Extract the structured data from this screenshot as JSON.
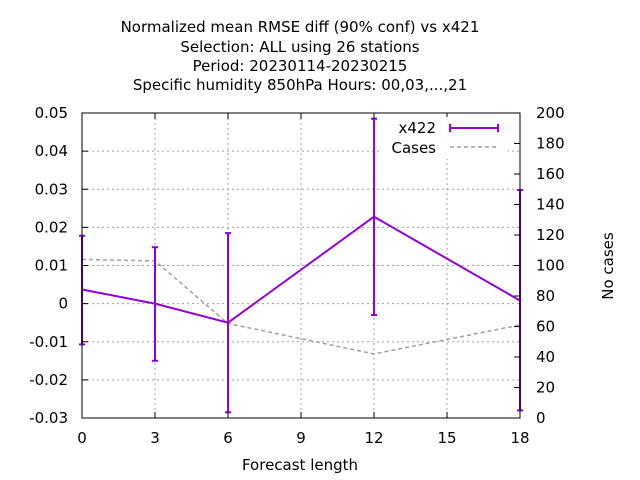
{
  "chart_data": {
    "type": "line",
    "title": [
      "Normalized mean RMSE diff (90% conf) vs x421",
      "Selection: ALL using    26 stations",
      "Period: 20230114-20230215",
      "Specific humidity 850hPa   Hours:  00,03,...,21"
    ],
    "xlabel": "Forecast length",
    "ylabel": "",
    "y2label": "No cases",
    "xlim": [
      0,
      18
    ],
    "ylim": [
      -0.03,
      0.05
    ],
    "y2lim": [
      0,
      200
    ],
    "xticks": [
      0,
      3,
      6,
      9,
      12,
      15,
      18
    ],
    "xtick_labels": [
      "0",
      "3",
      "6",
      "9",
      "12",
      "15",
      "18"
    ],
    "yticks": [
      -0.03,
      -0.02,
      -0.01,
      0,
      0.01,
      0.02,
      0.03,
      0.04,
      0.05
    ],
    "ytick_labels": [
      "-0.03",
      "-0.02",
      "-0.01",
      "0",
      "0.01",
      "0.02",
      "0.03",
      "0.04",
      "0.05"
    ],
    "y2ticks": [
      0,
      20,
      40,
      60,
      80,
      100,
      120,
      140,
      160,
      180,
      200
    ],
    "y2tick_labels": [
      "0",
      "20",
      "40",
      "60",
      "80",
      "100",
      "120",
      "140",
      "160",
      "180",
      "200"
    ],
    "grid": true,
    "legend_position": "top-right",
    "series": [
      {
        "name": "x422",
        "axis": "y",
        "style": "line-errorbars",
        "color": "#9400d3",
        "x": [
          0,
          3,
          6,
          12,
          18
        ],
        "y": [
          0.0037,
          0.0,
          -0.005,
          0.0228,
          0.0008
        ],
        "ylow": [
          -0.0107,
          -0.015,
          -0.0285,
          -0.003,
          -0.028
        ],
        "yhigh": [
          0.0178,
          0.0148,
          0.0185,
          0.0485,
          0.0298
        ]
      },
      {
        "name": "Cases",
        "axis": "y2",
        "style": "dashed",
        "color": "#a0a0a0",
        "x": [
          0,
          3,
          6,
          12,
          18
        ],
        "y": [
          104,
          103,
          62,
          42,
          61
        ]
      }
    ]
  }
}
